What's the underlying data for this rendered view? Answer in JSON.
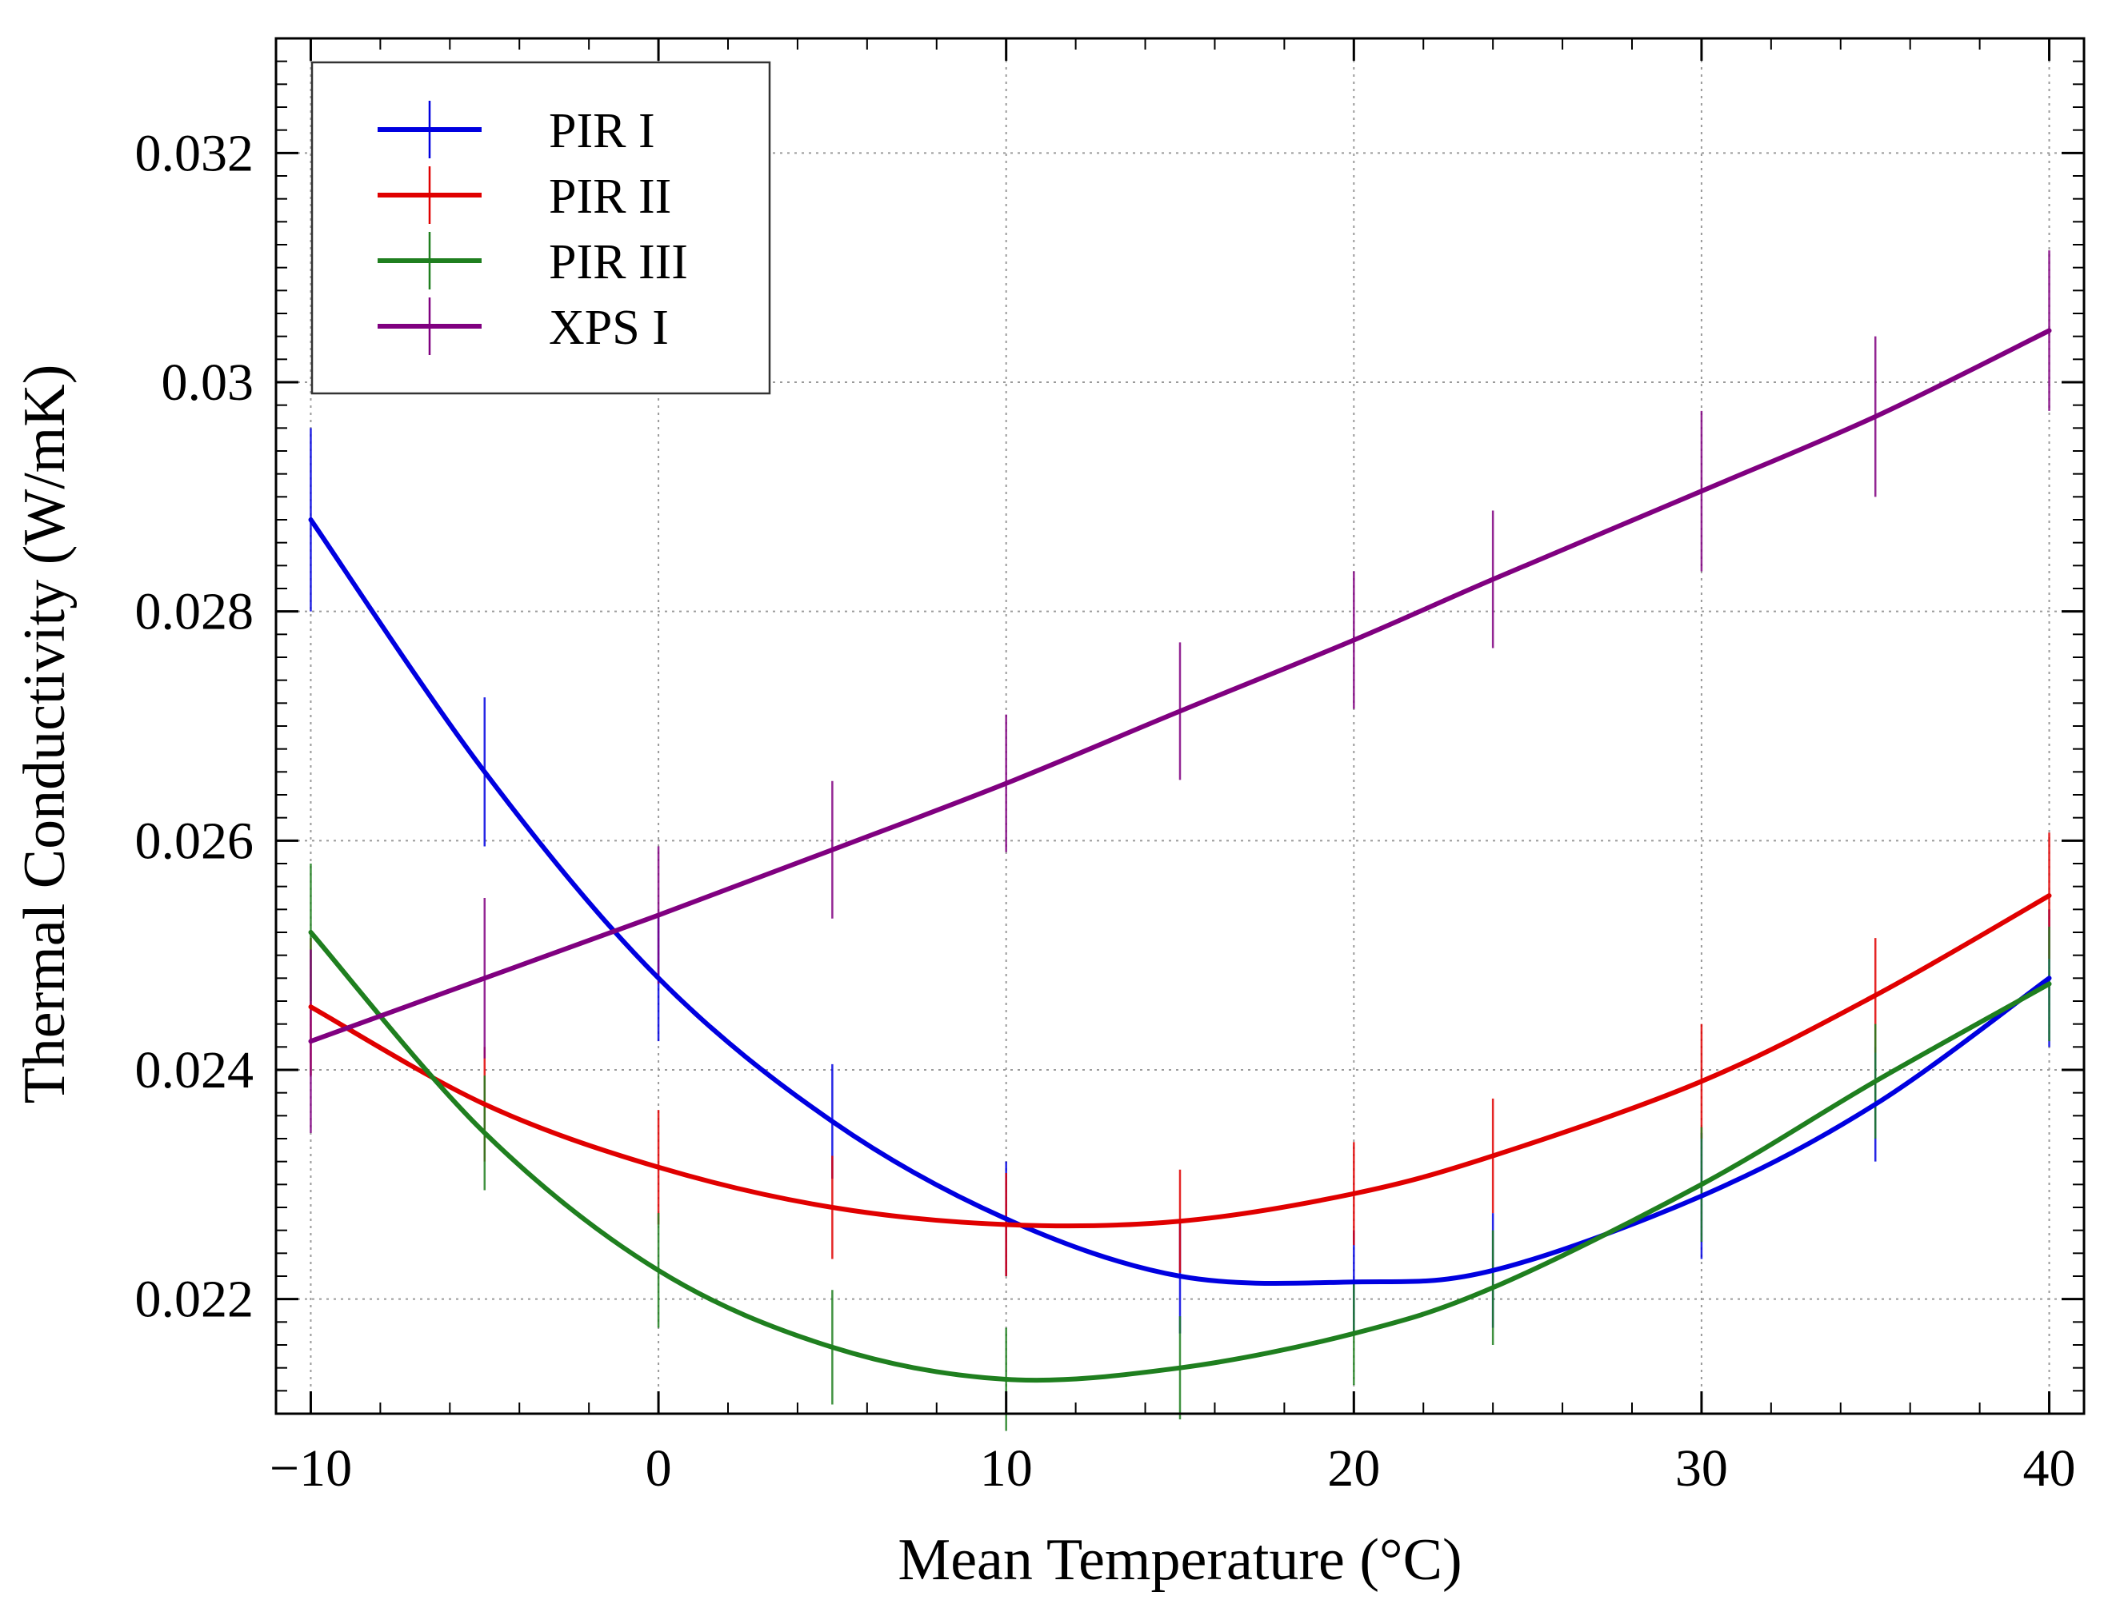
{
  "chart_data": {
    "type": "line",
    "title": "",
    "xlabel": "Mean Temperature (°C)",
    "ylabel": "Thermal Conductivity (W/mK)",
    "xlim": [
      -11,
      41
    ],
    "ylim": [
      0.021,
      0.033
    ],
    "xticks": [
      -10,
      0,
      10,
      20,
      30,
      40
    ],
    "xtick_labels": [
      "−10",
      "0",
      "10",
      "20",
      "30",
      "40"
    ],
    "yticks": [
      0.022,
      0.024,
      0.026,
      0.028,
      0.03,
      0.032
    ],
    "ytick_labels": [
      "0.022",
      "0.024",
      "0.026",
      "0.028",
      "0.03",
      "0.032"
    ],
    "grid": true,
    "legend_position": "top-left",
    "series": [
      {
        "name": "PIR I",
        "color": "#0000e0",
        "x": [
          -10,
          -5,
          0,
          5,
          10,
          15,
          20,
          24,
          30,
          35,
          40
        ],
        "y": [
          0.0288,
          0.0266,
          0.0248,
          0.02355,
          0.0227,
          0.0222,
          0.02215,
          0.02225,
          0.0229,
          0.0237,
          0.0248
        ],
        "err": [
          0.0008,
          0.00065,
          0.00055,
          0.0005,
          0.0005,
          0.0005,
          0.00045,
          0.0005,
          0.00055,
          0.0005,
          0.0006
        ]
      },
      {
        "name": "PIR II",
        "color": "#e00000",
        "x": [
          -10,
          -5,
          0,
          5,
          10,
          15,
          20,
          24,
          30,
          35,
          40
        ],
        "y": [
          0.02455,
          0.0237,
          0.02315,
          0.0228,
          0.02265,
          0.02268,
          0.02292,
          0.02325,
          0.0239,
          0.02465,
          0.02552
        ],
        "err": [
          0.0006,
          0.0005,
          0.0005,
          0.00045,
          0.00045,
          0.00045,
          0.00045,
          0.0005,
          0.0005,
          0.0005,
          0.00055
        ]
      },
      {
        "name": "PIR III",
        "color": "#1f7f1f",
        "x": [
          -10,
          -5,
          0,
          5,
          10,
          15,
          20,
          24,
          30,
          35,
          40
        ],
        "y": [
          0.0252,
          0.02345,
          0.02225,
          0.02158,
          0.0213,
          0.0214,
          0.0217,
          0.0221,
          0.023,
          0.0239,
          0.02475
        ],
        "err": [
          0.0006,
          0.0005,
          0.0005,
          0.0005,
          0.00045,
          0.00045,
          0.00045,
          0.0005,
          0.0005,
          0.0005,
          0.0005
        ]
      },
      {
        "name": "XPS I",
        "color": "#800080",
        "x": [
          -10,
          -5,
          0,
          5,
          10,
          15,
          20,
          24,
          30,
          35,
          40
        ],
        "y": [
          0.02425,
          0.0248,
          0.02535,
          0.02592,
          0.0265,
          0.02713,
          0.02775,
          0.02828,
          0.02905,
          0.0297,
          0.03045
        ],
        "err": [
          0.0008,
          0.0007,
          0.0006,
          0.0006,
          0.0006,
          0.0006,
          0.0006,
          0.0006,
          0.0007,
          0.0007,
          0.0007
        ]
      }
    ]
  }
}
